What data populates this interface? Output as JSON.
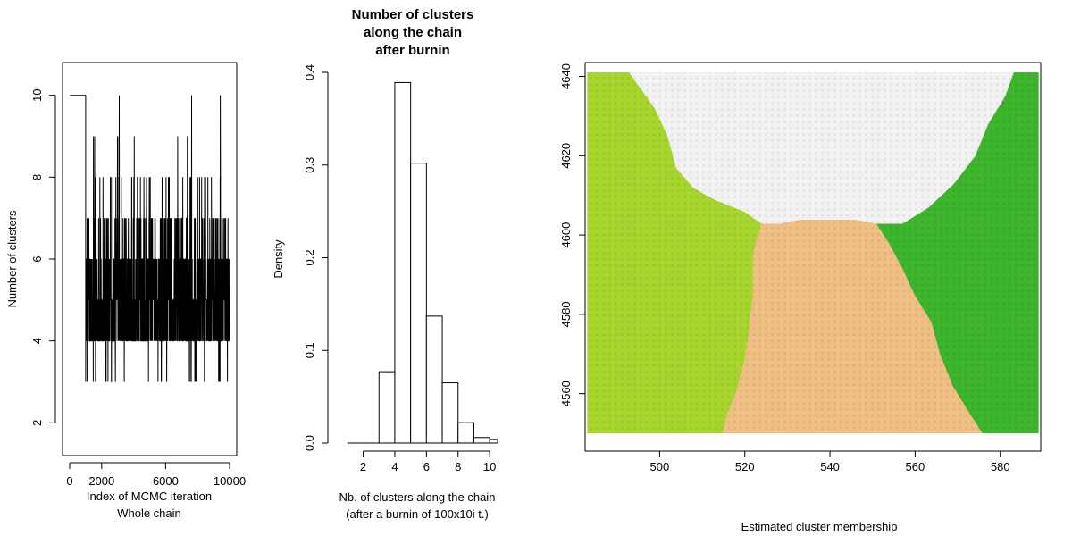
{
  "chart_data": [
    {
      "type": "line",
      "title": "",
      "xlabel": "Index of MCMC iteration",
      "xlabel2": "Whole chain",
      "ylabel": "Number of clusters",
      "xlim": [
        0,
        10000
      ],
      "ylim": [
        1.2,
        10.8
      ],
      "xticks": [
        0,
        2000,
        6000,
        10000
      ],
      "xtick_labels": [
        "0",
        "2000",
        "6000",
        "10000"
      ],
      "yticks": [
        2,
        4,
        6,
        8,
        10
      ],
      "ytick_labels": [
        "2",
        "4",
        "6",
        "8",
        "10"
      ],
      "grid": false,
      "series_color": "#000000",
      "seed": 17,
      "burnin_value": 10,
      "burnin_end": 1000,
      "n_points": 10000
    },
    {
      "type": "bar",
      "title": "Number of clusters\nalong the chain\nafter burnin",
      "xlabel": "Nb. of clusters along the chain",
      "xlabel2": "(after a burnin of 100x10i t.)",
      "ylabel": "Density",
      "xlim": [
        0.5,
        10.5
      ],
      "ylim": [
        0,
        0.4
      ],
      "xticks": [
        2,
        4,
        6,
        8,
        10
      ],
      "xtick_labels": [
        "2",
        "4",
        "6",
        "8",
        "10"
      ],
      "yticks": [
        0.0,
        0.1,
        0.2,
        0.3,
        0.4
      ],
      "ytick_labels": [
        "0.0",
        "0.1",
        "0.2",
        "0.3",
        "0.4"
      ],
      "bins": [
        {
          "x0": 1.0,
          "x1": 2.0,
          "value": 0.0
        },
        {
          "x0": 2.0,
          "x1": 3.0,
          "value": 0.0
        },
        {
          "x0": 3.0,
          "x1": 4.0,
          "value": 0.077
        },
        {
          "x0": 4.0,
          "x1": 5.0,
          "value": 0.389
        },
        {
          "x0": 5.0,
          "x1": 6.0,
          "value": 0.302
        },
        {
          "x0": 6.0,
          "x1": 7.0,
          "value": 0.137
        },
        {
          "x0": 7.0,
          "x1": 8.0,
          "value": 0.065
        },
        {
          "x0": 8.0,
          "x1": 9.0,
          "value": 0.022
        },
        {
          "x0": 9.0,
          "x1": 10.0,
          "value": 0.006
        },
        {
          "x0": 10.0,
          "x1": 11.0,
          "value": 0.004
        }
      ],
      "grid": false
    },
    {
      "type": "heatmap",
      "title": "",
      "xlabel": "Estimated cluster membership",
      "ylabel": "",
      "xlim": [
        482.5,
        589.5
      ],
      "ylim": [
        4545.5,
        4643.5
      ],
      "xticks": [
        500,
        520,
        540,
        560,
        580
      ],
      "xtick_labels": [
        "500",
        "520",
        "540",
        "560",
        "580"
      ],
      "yticks": [
        4560,
        4580,
        4600,
        4620,
        4640
      ],
      "ytick_labels": [
        "4560",
        "4580",
        "4600",
        "4620",
        "4640"
      ],
      "data_extent": {
        "x": [
          483,
          589
        ],
        "y": [
          4550,
          4641
        ]
      },
      "clusters": [
        {
          "id": 1,
          "color": "#a6d62d"
        },
        {
          "id": 2,
          "color": "#efbf84"
        },
        {
          "id": 3,
          "color": "#3db52c"
        },
        {
          "id": 4,
          "color": "#f2f2f2"
        }
      ],
      "regions": [
        {
          "cluster": 1,
          "polygon": [
            [
              483,
              4550
            ],
            [
              515,
              4550
            ],
            [
              516,
              4555
            ],
            [
              518,
              4560
            ],
            [
              520,
              4568
            ],
            [
              521,
              4575
            ],
            [
              522,
              4585
            ],
            [
              522,
              4595
            ],
            [
              524,
              4603
            ],
            [
              520,
              4606
            ],
            [
              513,
              4609
            ],
            [
              508,
              4612
            ],
            [
              504,
              4617
            ],
            [
              502,
              4625
            ],
            [
              499,
              4632
            ],
            [
              495,
              4638
            ],
            [
              493,
              4641
            ],
            [
              483,
              4641
            ]
          ]
        },
        {
          "cluster": 2,
          "polygon": [
            [
              515,
              4550
            ],
            [
              576,
              4550
            ],
            [
              573,
              4555
            ],
            [
              569,
              4562
            ],
            [
              566,
              4570
            ],
            [
              564,
              4578
            ],
            [
              560,
              4585
            ],
            [
              557,
              4592
            ],
            [
              554,
              4598
            ],
            [
              551,
              4603
            ],
            [
              546,
              4604
            ],
            [
              540,
              4604
            ],
            [
              533,
              4604
            ],
            [
              528,
              4603
            ],
            [
              524,
              4603
            ],
            [
              522,
              4595
            ],
            [
              522,
              4585
            ],
            [
              521,
              4575
            ],
            [
              520,
              4568
            ],
            [
              518,
              4560
            ],
            [
              516,
              4555
            ]
          ]
        },
        {
          "cluster": 3,
          "polygon": [
            [
              576,
              4550
            ],
            [
              589,
              4550
            ],
            [
              589,
              4641
            ],
            [
              583,
              4641
            ],
            [
              581,
              4635
            ],
            [
              577,
              4628
            ],
            [
              574,
              4620
            ],
            [
              569,
              4613
            ],
            [
              563,
              4607
            ],
            [
              557,
              4603
            ],
            [
              551,
              4603
            ],
            [
              554,
              4598
            ],
            [
              557,
              4592
            ],
            [
              560,
              4585
            ],
            [
              564,
              4578
            ],
            [
              566,
              4570
            ],
            [
              569,
              4562
            ],
            [
              573,
              4555
            ]
          ]
        },
        {
          "cluster": 4,
          "polygon": [
            [
              493,
              4641
            ],
            [
              583,
              4641
            ],
            [
              581,
              4635
            ],
            [
              577,
              4628
            ],
            [
              574,
              4620
            ],
            [
              569,
              4613
            ],
            [
              563,
              4607
            ],
            [
              557,
              4603
            ],
            [
              551,
              4603
            ],
            [
              546,
              4604
            ],
            [
              540,
              4604
            ],
            [
              533,
              4604
            ],
            [
              528,
              4603
            ],
            [
              524,
              4603
            ],
            [
              520,
              4606
            ],
            [
              513,
              4609
            ],
            [
              508,
              4612
            ],
            [
              504,
              4617
            ],
            [
              502,
              4625
            ],
            [
              499,
              4632
            ],
            [
              495,
              4638
            ]
          ]
        }
      ],
      "grid": false
    }
  ]
}
